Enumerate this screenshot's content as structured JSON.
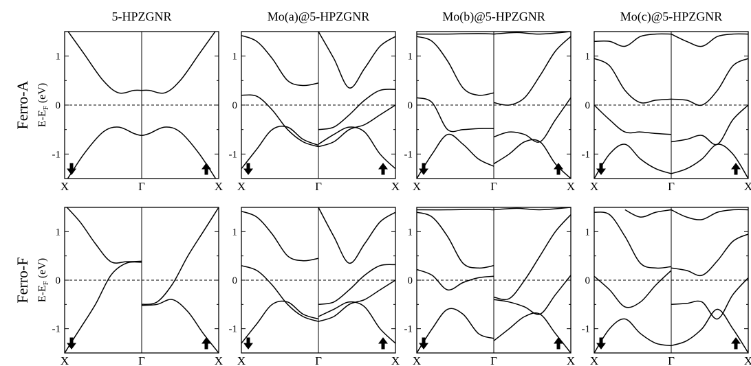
{
  "figure": {
    "ylabel": "E-E",
    "ylabel_sub": "F",
    "ylabel_unit": " (eV)"
  },
  "chart_data": {
    "type": "line",
    "panel_titles": [
      "5-HPZGNR",
      "Mo(a)@5-HPZGNR",
      "Mo(b)@5-HPZGNR",
      "Mo(c)@5-HPZGNR"
    ],
    "row_labels": [
      "Ferro-A",
      "Ferro-F"
    ],
    "xticklabels": [
      "X",
      "Γ",
      "X"
    ],
    "ylim": [
      -1.5,
      1.5
    ],
    "yticks": [
      -1,
      0,
      1
    ],
    "fermi_level": 0,
    "left_half_spin": "down",
    "right_half_spin": "up",
    "panels": [
      {
        "row": "Ferro-A",
        "title": "5-HPZGNR",
        "bands": [
          {
            "k": [
              -1,
              -0.75,
              -0.5,
              -0.3,
              -0.1,
              0,
              0.1,
              0.3,
              0.5,
              0.75,
              1
            ],
            "E": [
              1.6,
              1.05,
              0.5,
              0.25,
              0.3,
              0.3,
              0.3,
              0.25,
              0.5,
              1.05,
              1.6
            ]
          },
          {
            "k": [
              -1,
              -0.75,
              -0.5,
              -0.3,
              -0.1,
              0,
              0.1,
              0.3,
              0.5,
              0.75,
              1
            ],
            "E": [
              -1.6,
              -1.0,
              -0.55,
              -0.45,
              -0.58,
              -0.62,
              -0.58,
              -0.45,
              -0.55,
              -1.0,
              -1.6
            ]
          }
        ]
      },
      {
        "row": "Ferro-A",
        "title": "Mo(a)@5-HPZGNR",
        "bands": [
          {
            "k": [
              -1,
              -0.8,
              -0.6,
              -0.4,
              -0.2,
              0
            ],
            "E": [
              1.42,
              1.3,
              0.95,
              0.5,
              0.4,
              0.45
            ]
          },
          {
            "k": [
              -1,
              -0.8,
              -0.6,
              -0.4,
              -0.2,
              0
            ],
            "E": [
              0.2,
              0.18,
              -0.1,
              -0.5,
              -0.75,
              -0.85
            ]
          },
          {
            "k": [
              -1,
              -0.8,
              -0.6,
              -0.4,
              -0.2,
              0
            ],
            "E": [
              -1.3,
              -0.9,
              -0.5,
              -0.45,
              -0.7,
              -0.82
            ]
          },
          {
            "k": [
              0,
              0.2,
              0.4,
              0.6,
              0.8,
              1
            ],
            "E": [
              1.5,
              0.95,
              0.35,
              0.75,
              1.2,
              1.4
            ]
          },
          {
            "k": [
              0,
              0.2,
              0.4,
              0.6,
              0.8,
              1
            ],
            "E": [
              -0.5,
              -0.45,
              -0.2,
              0.1,
              0.3,
              0.32
            ]
          },
          {
            "k": [
              0,
              0.2,
              0.4,
              0.6,
              0.8,
              1
            ],
            "E": [
              -0.8,
              -0.6,
              -0.45,
              -0.55,
              -1.0,
              -1.3
            ]
          },
          {
            "k": [
              0,
              0.2,
              0.4,
              0.6,
              0.8,
              1
            ],
            "E": [
              -0.85,
              -0.75,
              -0.5,
              -0.4,
              -0.2,
              0.0
            ]
          }
        ]
      },
      {
        "row": "Ferro-A",
        "title": "Mo(b)@5-HPZGNR",
        "bands": [
          {
            "k": [
              -1,
              -0.8,
              -0.6,
              -0.4,
              -0.2,
              0
            ],
            "E": [
              1.4,
              1.3,
              0.9,
              0.35,
              0.2,
              0.25
            ]
          },
          {
            "k": [
              -1,
              -0.8,
              -0.6,
              -0.4,
              -0.2,
              0
            ],
            "E": [
              0.15,
              0.05,
              -0.5,
              -0.5,
              -0.48,
              -0.48
            ]
          },
          {
            "k": [
              -1,
              -0.8,
              -0.6,
              -0.4,
              -0.2,
              0
            ],
            "E": [
              -1.5,
              -1.0,
              -0.6,
              -0.8,
              -1.1,
              -1.25
            ]
          },
          {
            "k": [
              -1,
              -0.6,
              -0.2,
              0
            ],
            "E": [
              1.45,
              1.45,
              1.46,
              1.45
            ]
          },
          {
            "k": [
              0,
              0.2,
              0.4,
              0.6,
              0.8,
              1
            ],
            "E": [
              0.05,
              0.0,
              0.15,
              0.6,
              1.1,
              1.4
            ]
          },
          {
            "k": [
              0,
              0.2,
              0.4,
              0.6,
              0.8,
              1
            ],
            "E": [
              -0.65,
              -0.55,
              -0.6,
              -0.75,
              -0.3,
              0.15
            ]
          },
          {
            "k": [
              0,
              0.2,
              0.4,
              0.6,
              0.8,
              1
            ],
            "E": [
              -1.2,
              -1.0,
              -0.75,
              -0.75,
              -1.2,
              -1.5
            ]
          },
          {
            "k": [
              0,
              0.3,
              0.6,
              1
            ],
            "E": [
              1.45,
              1.48,
              1.45,
              1.5
            ]
          }
        ]
      },
      {
        "row": "Ferro-A",
        "title": "Mo(c)@5-HPZGNR",
        "bands": [
          {
            "k": [
              -1,
              -0.8,
              -0.6,
              -0.4,
              -0.2,
              0
            ],
            "E": [
              1.3,
              1.3,
              1.2,
              1.4,
              1.45,
              1.45
            ]
          },
          {
            "k": [
              -1,
              -0.8,
              -0.6,
              -0.4,
              -0.2,
              0
            ],
            "E": [
              0.95,
              0.8,
              0.3,
              0.05,
              0.1,
              0.12
            ]
          },
          {
            "k": [
              -1,
              -0.8,
              -0.6,
              -0.4,
              -0.2,
              0
            ],
            "E": [
              0.0,
              -0.3,
              -0.55,
              -0.55,
              -0.58,
              -0.6
            ]
          },
          {
            "k": [
              -1,
              -0.8,
              -0.6,
              -0.4,
              -0.2,
              0
            ],
            "E": [
              -1.5,
              -1.0,
              -0.8,
              -1.1,
              -1.3,
              -1.4
            ]
          },
          {
            "k": [
              0,
              0.2,
              0.4,
              0.6,
              0.8,
              1
            ],
            "E": [
              1.45,
              1.3,
              1.2,
              1.4,
              1.45,
              1.45
            ]
          },
          {
            "k": [
              0,
              0.2,
              0.4,
              0.6,
              0.8,
              1
            ],
            "E": [
              0.12,
              0.1,
              0.0,
              0.3,
              0.8,
              0.95
            ]
          },
          {
            "k": [
              0,
              0.2,
              0.4,
              0.6,
              0.8,
              1
            ],
            "E": [
              -0.75,
              -0.7,
              -0.62,
              -0.8,
              -0.3,
              0.0
            ]
          },
          {
            "k": [
              0,
              0.2,
              0.4,
              0.6,
              0.8,
              1
            ],
            "E": [
              -1.4,
              -1.3,
              -1.1,
              -0.8,
              -1.0,
              -1.5
            ]
          }
        ]
      },
      {
        "row": "Ferro-F",
        "title": "5-HPZGNR",
        "bands": [
          {
            "k": [
              -1,
              -0.8,
              -0.6,
              -0.4,
              -0.2,
              0
            ],
            "E": [
              1.55,
              1.2,
              0.75,
              0.38,
              0.38,
              0.39
            ]
          },
          {
            "k": [
              -1,
              -0.8,
              -0.6,
              -0.4,
              -0.2,
              0
            ],
            "E": [
              -1.5,
              -1.0,
              -0.5,
              0.1,
              0.35,
              0.37
            ]
          },
          {
            "k": [
              0,
              0.2,
              0.4,
              0.6,
              0.8,
              1
            ],
            "E": [
              -0.5,
              -0.45,
              -0.08,
              0.5,
              1.0,
              1.5
            ]
          },
          {
            "k": [
              0,
              0.2,
              0.4,
              0.6,
              0.8,
              1
            ],
            "E": [
              -0.52,
              -0.5,
              -0.4,
              -0.65,
              -1.1,
              -1.5
            ]
          }
        ]
      },
      {
        "row": "Ferro-F",
        "title": "Mo(a)@5-HPZGNR",
        "bands": [
          {
            "k": [
              -1,
              -0.8,
              -0.6,
              -0.4,
              -0.2,
              0
            ],
            "E": [
              1.42,
              1.3,
              0.95,
              0.5,
              0.4,
              0.45
            ]
          },
          {
            "k": [
              -1,
              -0.8,
              -0.6,
              -0.4,
              -0.2,
              0
            ],
            "E": [
              0.3,
              0.2,
              -0.1,
              -0.5,
              -0.75,
              -0.85
            ]
          },
          {
            "k": [
              -1,
              -0.8,
              -0.6,
              -0.4,
              -0.2,
              0
            ],
            "E": [
              -1.3,
              -0.9,
              -0.5,
              -0.45,
              -0.7,
              -0.8
            ]
          },
          {
            "k": [
              0,
              0.2,
              0.4,
              0.6,
              0.8,
              1
            ],
            "E": [
              1.5,
              0.9,
              0.35,
              0.75,
              1.2,
              1.4
            ]
          },
          {
            "k": [
              0,
              0.2,
              0.4,
              0.6,
              0.8,
              1
            ],
            "E": [
              -0.5,
              -0.45,
              -0.2,
              0.1,
              0.3,
              0.32
            ]
          },
          {
            "k": [
              0,
              0.2,
              0.4,
              0.6,
              0.8,
              1
            ],
            "E": [
              -0.75,
              -0.6,
              -0.45,
              -0.55,
              -1.0,
              -1.3
            ]
          },
          {
            "k": [
              0,
              0.2,
              0.4,
              0.6,
              0.8,
              1
            ],
            "E": [
              -0.85,
              -0.75,
              -0.5,
              -0.4,
              -0.2,
              0.0
            ]
          }
        ]
      },
      {
        "row": "Ferro-F",
        "title": "Mo(b)@5-HPZGNR",
        "bands": [
          {
            "k": [
              -1,
              -0.8,
              -0.6,
              -0.4,
              -0.2,
              0
            ],
            "E": [
              1.4,
              1.3,
              0.9,
              0.35,
              0.25,
              0.3
            ]
          },
          {
            "k": [
              -1,
              -0.8,
              -0.6,
              -0.4,
              -0.2,
              0
            ],
            "E": [
              0.22,
              0.1,
              -0.2,
              -0.05,
              0.05,
              0.08
            ]
          },
          {
            "k": [
              -1,
              -0.8,
              -0.6,
              -0.4,
              -0.2,
              0
            ],
            "E": [
              -1.5,
              -1.0,
              -0.6,
              -0.7,
              -1.1,
              -1.2
            ]
          },
          {
            "k": [
              -1,
              -0.6,
              -0.2,
              0
            ],
            "E": [
              1.45,
              1.45,
              1.46,
              1.45
            ]
          },
          {
            "k": [
              0,
              0.2,
              0.4,
              0.6,
              0.8,
              1
            ],
            "E": [
              -0.35,
              -0.38,
              0.0,
              0.5,
              1.0,
              1.35
            ]
          },
          {
            "k": [
              0,
              0.2,
              0.4,
              0.6,
              0.8,
              1
            ],
            "E": [
              -0.4,
              -0.45,
              -0.55,
              -0.7,
              -0.3,
              0.1
            ]
          },
          {
            "k": [
              0,
              0.2,
              0.4,
              0.6,
              0.8,
              1
            ],
            "E": [
              -1.25,
              -1.0,
              -0.75,
              -0.7,
              -1.1,
              -1.5
            ]
          },
          {
            "k": [
              0,
              0.3,
              0.6,
              1
            ],
            "E": [
              1.45,
              1.48,
              1.45,
              1.5
            ]
          }
        ]
      },
      {
        "row": "Ferro-F",
        "title": "Mo(c)@5-HPZGNR",
        "bands": [
          {
            "k": [
              -1,
              -0.8,
              -0.6,
              -0.4,
              -0.2,
              0
            ],
            "E": [
              1.4,
              1.35,
              0.9,
              0.35,
              0.25,
              0.28
            ]
          },
          {
            "k": [
              -1,
              -0.8,
              -0.6,
              -0.4,
              -0.2,
              0
            ],
            "E": [
              0.08,
              -0.2,
              -0.55,
              -0.45,
              -0.1,
              0.2
            ]
          },
          {
            "k": [
              -1,
              -0.8,
              -0.6,
              -0.4,
              -0.2,
              0
            ],
            "E": [
              -1.5,
              -1.0,
              -0.8,
              -1.1,
              -1.3,
              -1.35
            ]
          },
          {
            "k": [
              -0.6,
              -0.4,
              -0.2,
              0
            ],
            "E": [
              1.45,
              1.3,
              1.4,
              1.45
            ]
          },
          {
            "k": [
              0,
              0.2,
              0.4,
              0.6,
              0.8,
              1
            ],
            "E": [
              1.45,
              1.3,
              1.25,
              1.4,
              1.45,
              1.45
            ]
          },
          {
            "k": [
              0,
              0.2,
              0.4,
              0.6,
              0.8,
              1
            ],
            "E": [
              0.25,
              0.2,
              0.1,
              0.4,
              0.8,
              0.95
            ]
          },
          {
            "k": [
              0,
              0.2,
              0.4,
              0.6,
              0.8,
              1
            ],
            "E": [
              -0.5,
              -0.48,
              -0.45,
              -0.8,
              -0.3,
              0.05
            ]
          },
          {
            "k": [
              0,
              0.2,
              0.4,
              0.6,
              0.8,
              1
            ],
            "E": [
              -1.35,
              -1.25,
              -1.0,
              -0.6,
              -1.0,
              -1.5
            ]
          }
        ]
      }
    ]
  }
}
